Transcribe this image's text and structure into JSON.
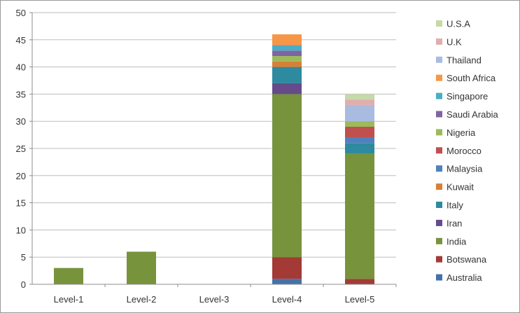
{
  "chart_data": {
    "type": "bar",
    "stacked": true,
    "title": "",
    "xlabel": "",
    "ylabel": "",
    "ylim": [
      0,
      50
    ],
    "yticks": [
      0,
      5,
      10,
      15,
      20,
      25,
      30,
      35,
      40,
      45,
      50
    ],
    "grid": true,
    "legend_position": "right",
    "categories": [
      "Level-1",
      "Level-2",
      "Level-3",
      "Level-4",
      "Level-5"
    ],
    "series": [
      {
        "name": "Australia",
        "color": "#4472a8",
        "values": [
          0,
          0,
          0,
          1,
          0
        ]
      },
      {
        "name": "Botswana",
        "color": "#a33a36",
        "values": [
          0,
          0,
          0,
          4,
          1
        ]
      },
      {
        "name": "India",
        "color": "#77933c",
        "values": [
          3,
          6,
          0,
          30,
          23
        ]
      },
      {
        "name": "Iran",
        "color": "#654b8a",
        "values": [
          0,
          0,
          0,
          2,
          0
        ]
      },
      {
        "name": "Italy",
        "color": "#2e8a9e",
        "values": [
          0,
          0,
          0,
          3,
          2
        ]
      },
      {
        "name": "Kuwait",
        "color": "#d97f35",
        "values": [
          0,
          0,
          0,
          1,
          0
        ]
      },
      {
        "name": "Malaysia",
        "color": "#4f81bd",
        "values": [
          0,
          0,
          0,
          0,
          1
        ]
      },
      {
        "name": "Morocco",
        "color": "#c0504d",
        "values": [
          0,
          0,
          0,
          0,
          2
        ]
      },
      {
        "name": "Nigeria",
        "color": "#9bbb59",
        "values": [
          0,
          0,
          0,
          1,
          1
        ]
      },
      {
        "name": "Saudi Arabia",
        "color": "#8064a2",
        "values": [
          0,
          0,
          0,
          1,
          0
        ]
      },
      {
        "name": "Singapore",
        "color": "#4bacc6",
        "values": [
          0,
          0,
          0,
          1,
          0
        ]
      },
      {
        "name": "South Africa",
        "color": "#f79646",
        "values": [
          0,
          0,
          0,
          2,
          0
        ]
      },
      {
        "name": "Thailand",
        "color": "#a9bcdf",
        "values": [
          0,
          0,
          0,
          0,
          3
        ]
      },
      {
        "name": "U.K",
        "color": "#e0aeac",
        "values": [
          0,
          0,
          0,
          0,
          1
        ]
      },
      {
        "name": "U.S.A",
        "color": "#c5d9a9",
        "values": [
          0,
          0,
          0,
          0,
          1
        ]
      }
    ]
  }
}
